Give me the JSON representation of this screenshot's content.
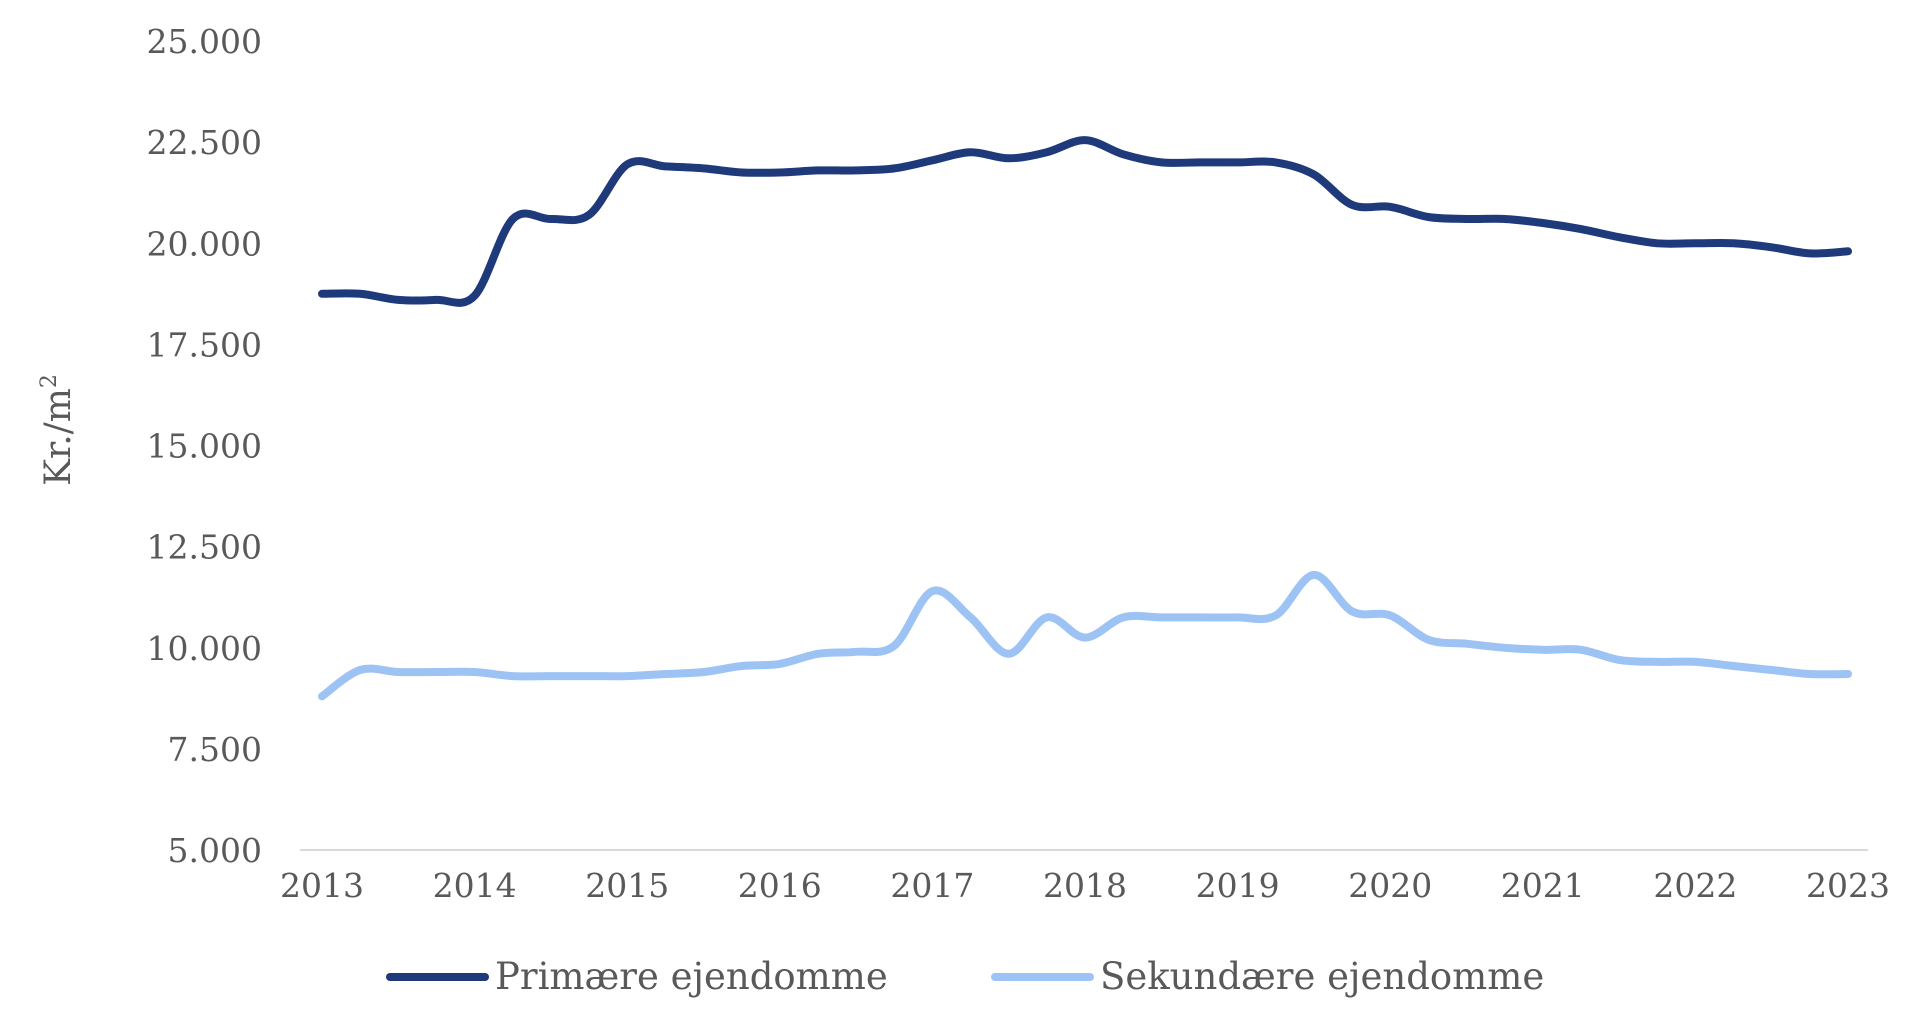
{
  "chart_data": {
    "type": "line",
    "title": "",
    "xlabel": "",
    "ylabel": "Kr./m",
    "ylabel_superscript": "2",
    "ylim": [
      5000,
      25000
    ],
    "yticks": [
      5000,
      7500,
      10000,
      12500,
      15000,
      17500,
      20000,
      22500,
      25000
    ],
    "ytick_labels": [
      "5.000",
      "7.500",
      "10.000",
      "12.500",
      "15.000",
      "17.500",
      "20.000",
      "22.500",
      "25.000"
    ],
    "xlim": [
      2013,
      2023
    ],
    "xticks": [
      2013,
      2014,
      2015,
      2016,
      2017,
      2018,
      2019,
      2020,
      2021,
      2022,
      2023
    ],
    "xtick_labels": [
      "2013",
      "2014",
      "2015",
      "2016",
      "2017",
      "2018",
      "2019",
      "2020",
      "2021",
      "2022",
      "2023"
    ],
    "grid": false,
    "legend_position": "bottom",
    "series": [
      {
        "name": "Primære ejendomme",
        "color": "#1f3a7a",
        "x": [
          2013.0,
          2013.25,
          2013.5,
          2013.75,
          2014.0,
          2014.25,
          2014.5,
          2014.75,
          2015.0,
          2015.25,
          2015.5,
          2015.75,
          2016.0,
          2016.25,
          2016.5,
          2016.75,
          2017.0,
          2017.25,
          2017.5,
          2017.75,
          2018.0,
          2018.25,
          2018.5,
          2018.75,
          2019.0,
          2019.25,
          2019.5,
          2019.75,
          2020.0,
          2020.25,
          2020.5,
          2020.75,
          2021.0,
          2021.25,
          2021.5,
          2021.75,
          2022.0,
          2022.25,
          2022.5,
          2022.75,
          2023.0
        ],
        "values": [
          18750,
          18750,
          18600,
          18600,
          18700,
          20600,
          20600,
          20700,
          21950,
          21900,
          21850,
          21750,
          21750,
          21800,
          21800,
          21850,
          22050,
          22250,
          22100,
          22250,
          22550,
          22200,
          22000,
          22000,
          22000,
          22000,
          21700,
          20950,
          20900,
          20650,
          20600,
          20600,
          20500,
          20350,
          20150,
          20000,
          20000,
          20000,
          19900,
          19750,
          19800
        ]
      },
      {
        "name": "Sekundære ejendomme",
        "color": "#9dc3f5",
        "x": [
          2013.0,
          2013.25,
          2013.5,
          2013.75,
          2014.0,
          2014.25,
          2014.5,
          2014.75,
          2015.0,
          2015.25,
          2015.5,
          2015.75,
          2016.0,
          2016.25,
          2016.5,
          2016.75,
          2017.0,
          2017.25,
          2017.5,
          2017.75,
          2018.0,
          2018.25,
          2018.5,
          2018.75,
          2019.0,
          2019.25,
          2019.5,
          2019.75,
          2020.0,
          2020.25,
          2020.5,
          2020.75,
          2021.0,
          2021.25,
          2021.5,
          2021.75,
          2022.0,
          2022.25,
          2022.5,
          2022.75,
          2023.0
        ],
        "values": [
          8800,
          9450,
          9400,
          9400,
          9400,
          9300,
          9300,
          9300,
          9300,
          9350,
          9400,
          9550,
          9600,
          9850,
          9900,
          10050,
          11400,
          10750,
          9850,
          10750,
          10250,
          10750,
          10750,
          10750,
          10750,
          10800,
          11800,
          10900,
          10800,
          10200,
          10100,
          10000,
          9950,
          9950,
          9700,
          9650,
          9650,
          9550,
          9450,
          9350,
          9350
        ]
      }
    ]
  }
}
